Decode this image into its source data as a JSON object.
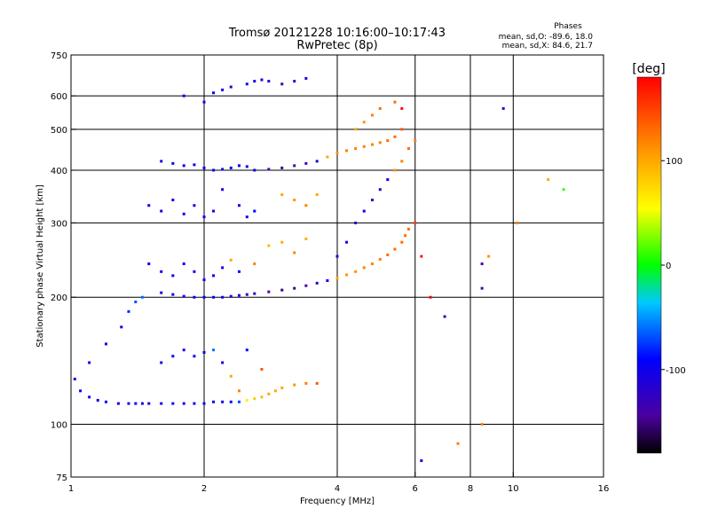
{
  "chart_data": {
    "type": "scatter",
    "title": "Tromsø 20121228 10:16:00–10:17:43",
    "subtitle": "RwPretec (8p)",
    "xlabel": "Frequency [MHz]",
    "ylabel": "Stationary phase Virtual Height [km]",
    "x_scale": "log",
    "y_scale": "log",
    "xlim": [
      1,
      16
    ],
    "ylim": [
      75,
      750
    ],
    "x_ticks": [
      1,
      2,
      4,
      6,
      8,
      10,
      16
    ],
    "x_tick_labels": [
      "1",
      "2",
      "4",
      "6",
      "8",
      "10",
      "16"
    ],
    "y_ticks": [
      75,
      100,
      200,
      300,
      400,
      500,
      600,
      750
    ],
    "y_tick_labels": [
      "75",
      "100",
      "200",
      "300",
      "400",
      "500",
      "600",
      "750"
    ],
    "grid": true,
    "stats": {
      "heading": "Phases",
      "line_o": "mean, sd,O: -89.6, 18.0",
      "line_x": "mean, sd,X: 84.6, 21.7"
    },
    "colorbar": {
      "label": "[deg]",
      "min": -180,
      "max": 180,
      "ticks": [
        100,
        0,
        -100
      ],
      "tick_labels": [
        "100",
        "0",
        "-100"
      ],
      "colormap": "rainbow"
    },
    "series": [
      {
        "x": [
          1.02,
          1.05,
          1.1,
          1.15,
          1.2,
          1.28,
          1.35,
          1.4,
          1.45,
          1.5,
          1.6,
          1.7,
          1.8,
          1.9,
          2.0,
          2.1,
          2.2,
          2.3,
          2.4,
          2.5,
          2.6,
          2.7,
          2.8,
          2.9,
          3.0,
          3.2,
          3.4,
          3.6
        ],
        "y": [
          128,
          120,
          116,
          114,
          113,
          112,
          112,
          112,
          112,
          112,
          112,
          112,
          112,
          112,
          112,
          113,
          113,
          113,
          113,
          114,
          115,
          116,
          118,
          120,
          122,
          124,
          125,
          125
        ],
        "phase": [
          -100,
          -100,
          -100,
          -100,
          -100,
          -100,
          -100,
          -100,
          -100,
          -100,
          -100,
          -100,
          -100,
          -100,
          -100,
          -100,
          -100,
          -90,
          -70,
          60,
          80,
          90,
          100,
          100,
          100,
          110,
          120,
          140
        ]
      },
      {
        "x": [
          1.1,
          1.2,
          1.3,
          1.35,
          1.4,
          1.45
        ],
        "y": [
          140,
          155,
          170,
          185,
          195,
          200
        ],
        "phase": [
          -100,
          -110,
          -100,
          -80,
          -70,
          -60
        ]
      },
      {
        "x": [
          1.6,
          1.7,
          1.8,
          1.9,
          2.0,
          2.1,
          2.2,
          2.3,
          2.4,
          2.5,
          2.7
        ],
        "y": [
          140,
          145,
          150,
          145,
          148,
          150,
          140,
          130,
          120,
          150,
          135
        ],
        "phase": [
          -100,
          -100,
          -100,
          -100,
          -100,
          -60,
          -100,
          100,
          120,
          -90,
          140
        ]
      },
      {
        "x": [
          1.6,
          1.7,
          1.8,
          1.9,
          2.0,
          2.1,
          2.2,
          2.3,
          2.4,
          2.5,
          2.6,
          2.8,
          3.0,
          3.2,
          3.4,
          3.6,
          3.8,
          4.0,
          4.2,
          4.4,
          4.6,
          4.8,
          5.0,
          5.2,
          5.4,
          5.6,
          5.7,
          5.8
        ],
        "y": [
          205,
          203,
          201,
          200,
          200,
          200,
          200,
          201,
          202,
          203,
          204,
          206,
          208,
          210,
          213,
          216,
          219,
          222,
          226,
          230,
          235,
          240,
          246,
          252,
          260,
          270,
          280,
          290
        ],
        "phase": [
          -100,
          -100,
          -100,
          -100,
          -100,
          -100,
          -100,
          -110,
          -110,
          -120,
          -130,
          -140,
          -150,
          -150,
          -140,
          -120,
          -100,
          100,
          110,
          110,
          120,
          120,
          120,
          130,
          130,
          130,
          130,
          130
        ]
      },
      {
        "x": [
          1.5,
          1.6,
          1.7,
          1.8,
          1.9,
          2.0,
          2.1,
          2.2,
          2.3,
          2.4,
          2.6,
          2.8,
          3.0,
          3.2,
          3.4
        ],
        "y": [
          240,
          230,
          225,
          240,
          230,
          220,
          225,
          235,
          245,
          230,
          240,
          265,
          270,
          255,
          275
        ],
        "phase": [
          -100,
          -100,
          -100,
          -100,
          -100,
          -100,
          -100,
          -100,
          100,
          -100,
          120,
          90,
          100,
          120,
          100
        ]
      },
      {
        "x": [
          1.5,
          1.6,
          1.7,
          1.8,
          1.9,
          2.0,
          2.1,
          2.2,
          2.4,
          2.5,
          2.6,
          3.0,
          3.2,
          3.4,
          3.6
        ],
        "y": [
          330,
          320,
          340,
          315,
          330,
          310,
          320,
          360,
          330,
          310,
          320,
          350,
          340,
          330,
          350
        ],
        "phase": [
          -100,
          -100,
          -100,
          -100,
          -100,
          -100,
          -100,
          -100,
          -100,
          -100,
          -90,
          100,
          110,
          120,
          100
        ]
      },
      {
        "x": [
          1.6,
          1.7,
          1.8,
          1.9,
          2.0,
          2.1,
          2.2,
          2.3,
          2.4,
          2.5,
          2.6,
          2.8,
          3.0,
          3.2,
          3.4,
          3.6,
          3.8,
          4.0,
          4.2,
          4.4,
          4.6,
          4.8,
          5.0,
          5.2,
          5.4,
          5.6
        ],
        "y": [
          420,
          415,
          410,
          412,
          405,
          400,
          402,
          405,
          410,
          408,
          400,
          402,
          405,
          410,
          415,
          420,
          430,
          440,
          445,
          450,
          455,
          460,
          465,
          470,
          480,
          500
        ],
        "phase": [
          -100,
          -100,
          -100,
          -100,
          -100,
          -100,
          -100,
          -100,
          -100,
          -100,
          -100,
          -140,
          -150,
          -140,
          -130,
          -110,
          100,
          110,
          120,
          120,
          120,
          120,
          120,
          130,
          130,
          140
        ]
      },
      {
        "x": [
          1.8,
          2.0,
          2.1,
          2.2,
          2.3,
          2.5,
          2.6,
          2.7,
          2.8,
          3.0,
          3.2,
          3.4
        ],
        "y": [
          600,
          580,
          610,
          620,
          630,
          640,
          650,
          655,
          650,
          640,
          650,
          660
        ],
        "phase": [
          -100,
          -100,
          -100,
          -100,
          -110,
          -100,
          -100,
          -100,
          -110,
          -130,
          -120,
          -110
        ]
      },
      {
        "x": [
          4.0,
          4.2,
          4.4,
          4.6,
          4.8,
          5.0,
          5.2,
          5.4,
          5.6,
          5.8,
          6.0
        ],
        "y": [
          250,
          270,
          300,
          320,
          340,
          360,
          380,
          400,
          420,
          450,
          470
        ],
        "phase": [
          -110,
          -100,
          -120,
          -100,
          -130,
          -120,
          -100,
          110,
          120,
          130,
          120
        ]
      },
      {
        "x": [
          4.4,
          4.6,
          4.8,
          5.0,
          5.4,
          5.6
        ],
        "y": [
          500,
          520,
          540,
          560,
          580,
          560
        ],
        "phase": [
          100,
          110,
          120,
          130,
          130,
          180
        ]
      },
      {
        "x": [
          6.0,
          6.2,
          6.5,
          7.0,
          7.5,
          8.5,
          8.8,
          9.5,
          10.2,
          12.0,
          13.0
        ],
        "y": [
          300,
          250,
          200,
          180,
          90,
          100,
          250,
          560,
          300,
          380,
          360
        ],
        "phase": [
          150,
          170,
          180,
          -120,
          120,
          120,
          110,
          -120,
          120,
          100,
          10
        ]
      },
      {
        "x": [
          6.2,
          8.5,
          8.5
        ],
        "y": [
          82,
          240,
          210
        ],
        "phase": [
          -110,
          -140,
          -140
        ]
      }
    ]
  }
}
